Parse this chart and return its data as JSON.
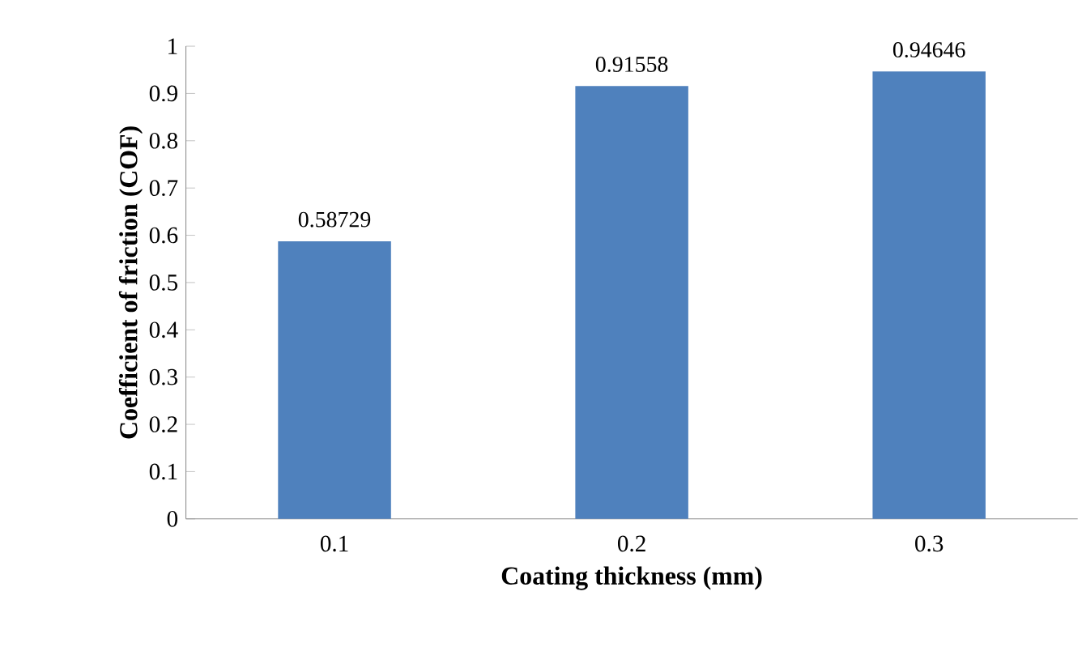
{
  "chart_data": {
    "type": "bar",
    "xlabel": "Coating thickness (mm)",
    "ylabel": "Coefficient of friction (COF)",
    "categories": [
      "0.1",
      "0.2",
      "0.3"
    ],
    "values": [
      0.58729,
      0.91558,
      0.94646
    ],
    "color": "#4f81bd",
    "value_labels": [
      "0.58729",
      "0.91558",
      "0.94646"
    ],
    "ylim": [
      0,
      1
    ],
    "yticks": [
      0,
      0.1,
      0.2,
      0.3,
      0.4,
      0.5,
      0.6,
      0.7,
      0.8,
      0.9,
      1
    ],
    "grid": false
  }
}
